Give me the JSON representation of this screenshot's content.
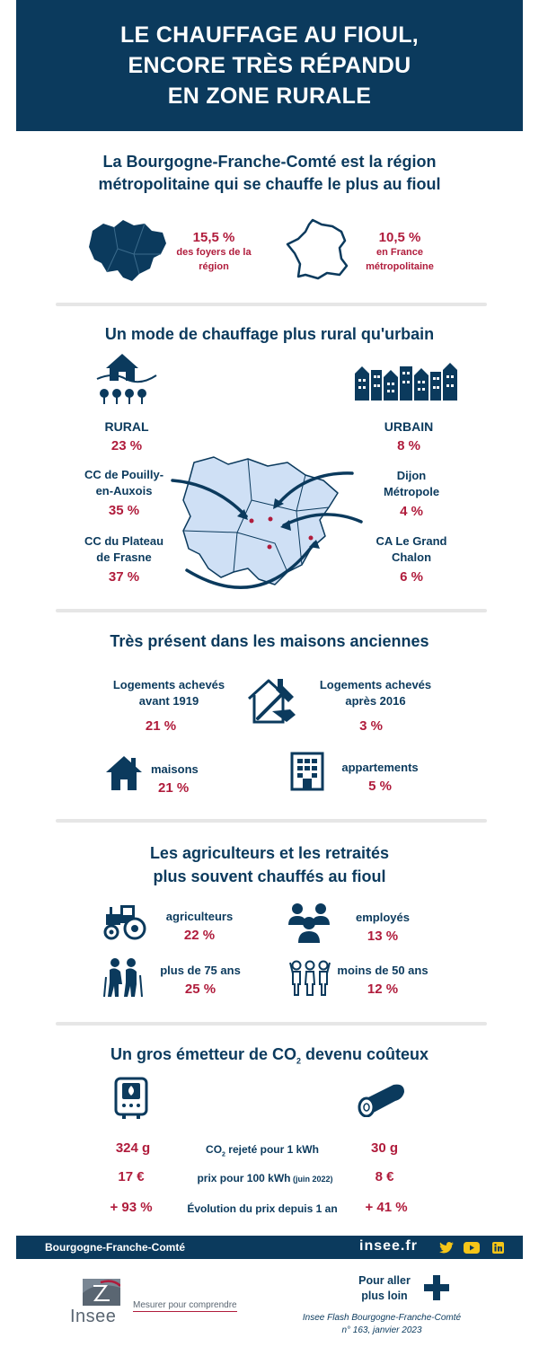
{
  "header": {
    "title_line1": "LE CHAUFFAGE AU FIOUL,",
    "title_line2": "ENCORE TRÈS RÉPANDU",
    "title_line3": "EN ZONE RURALE"
  },
  "section1": {
    "title_line1": "La Bourgogne-Franche-Comté est la région",
    "title_line2": "métropolitaine qui se chauffe le plus au fioul",
    "region_value": "15,5 %",
    "region_label_line1": "des foyers de la",
    "region_label_line2": "région",
    "france_value": "10,5 %",
    "france_label_line1": "en France",
    "france_label_line2": "métropolitaine"
  },
  "section2": {
    "title": "Un mode de chauffage plus rural qu'urbain",
    "rural_label": "RURAL",
    "rural_value": "23 %",
    "urbain_label": "URBAIN",
    "urbain_value": "8 %",
    "cc_pouilly_line1": "CC de Pouilly-",
    "cc_pouilly_line2": "en-Auxois",
    "cc_pouilly_value": "35 %",
    "cc_plateau_line1": "CC du Plateau",
    "cc_plateau_line2": "de Frasne",
    "cc_plateau_value": "37 %",
    "dijon_line1": "Dijon",
    "dijon_line2": "Métropole",
    "dijon_value": "4 %",
    "chalon_line1": "CA Le Grand",
    "chalon_line2": "Chalon",
    "chalon_value": "6 %"
  },
  "section3": {
    "title": "Très présent dans les maisons anciennes",
    "before_line1": "Logements achevés",
    "before_line2": "avant 1919",
    "before_value": "21 %",
    "after_line1": "Logements achevés",
    "after_line2": "après 2016",
    "after_value": "3 %",
    "maisons_label": "maisons",
    "maisons_value": "21 %",
    "appartements_label": "appartements",
    "appartements_value": "5 %"
  },
  "section4": {
    "title_line1": "Les agriculteurs et les retraités",
    "title_line2": "plus souvent chauffés au fioul",
    "agri_label": "agriculteurs",
    "agri_value": "22 %",
    "employes_label": "employés",
    "employes_value": "13 %",
    "plus75_label": "plus de 75 ans",
    "plus75_value": "25 %",
    "moins50_label": "moins de 50 ans",
    "moins50_value": "12 %"
  },
  "section5": {
    "title_prefix": "Un gros émetteur de CO",
    "title_sub": "2",
    "title_suffix": " devenu coûteux",
    "row1_left": "324 g",
    "row1_mid_prefix": "CO",
    "row1_mid_sub": "2",
    "row1_mid_suffix": "  rejeté pour 1 kWh",
    "row1_right": "30 g",
    "row2_left": "17 €",
    "row2_mid": "prix pour 100 kWh",
    "row2_mid_small": " (juin 2022)",
    "row2_right": "8 €",
    "row3_left": "+ 93 %",
    "row3_mid": "Évolution du prix depuis 1 an",
    "row3_right": "+ 41 %"
  },
  "footer": {
    "region": "Bourgogne-Franche-Comté",
    "site": "insee.fr",
    "logo_text": "Insee",
    "tagline": "Mesurer pour comprendre",
    "more_line1": "Pour aller",
    "more_line2": "plus loin",
    "ref_line1": "Insee Flash Bourgogne-Franche-Comté",
    "ref_line2": "n° 163, janvier 2023"
  },
  "colors": {
    "navy": "#0b3a5d",
    "red": "#b01c3c",
    "map_fill": "#cfe0f5",
    "separator": "#e6e6e6"
  }
}
